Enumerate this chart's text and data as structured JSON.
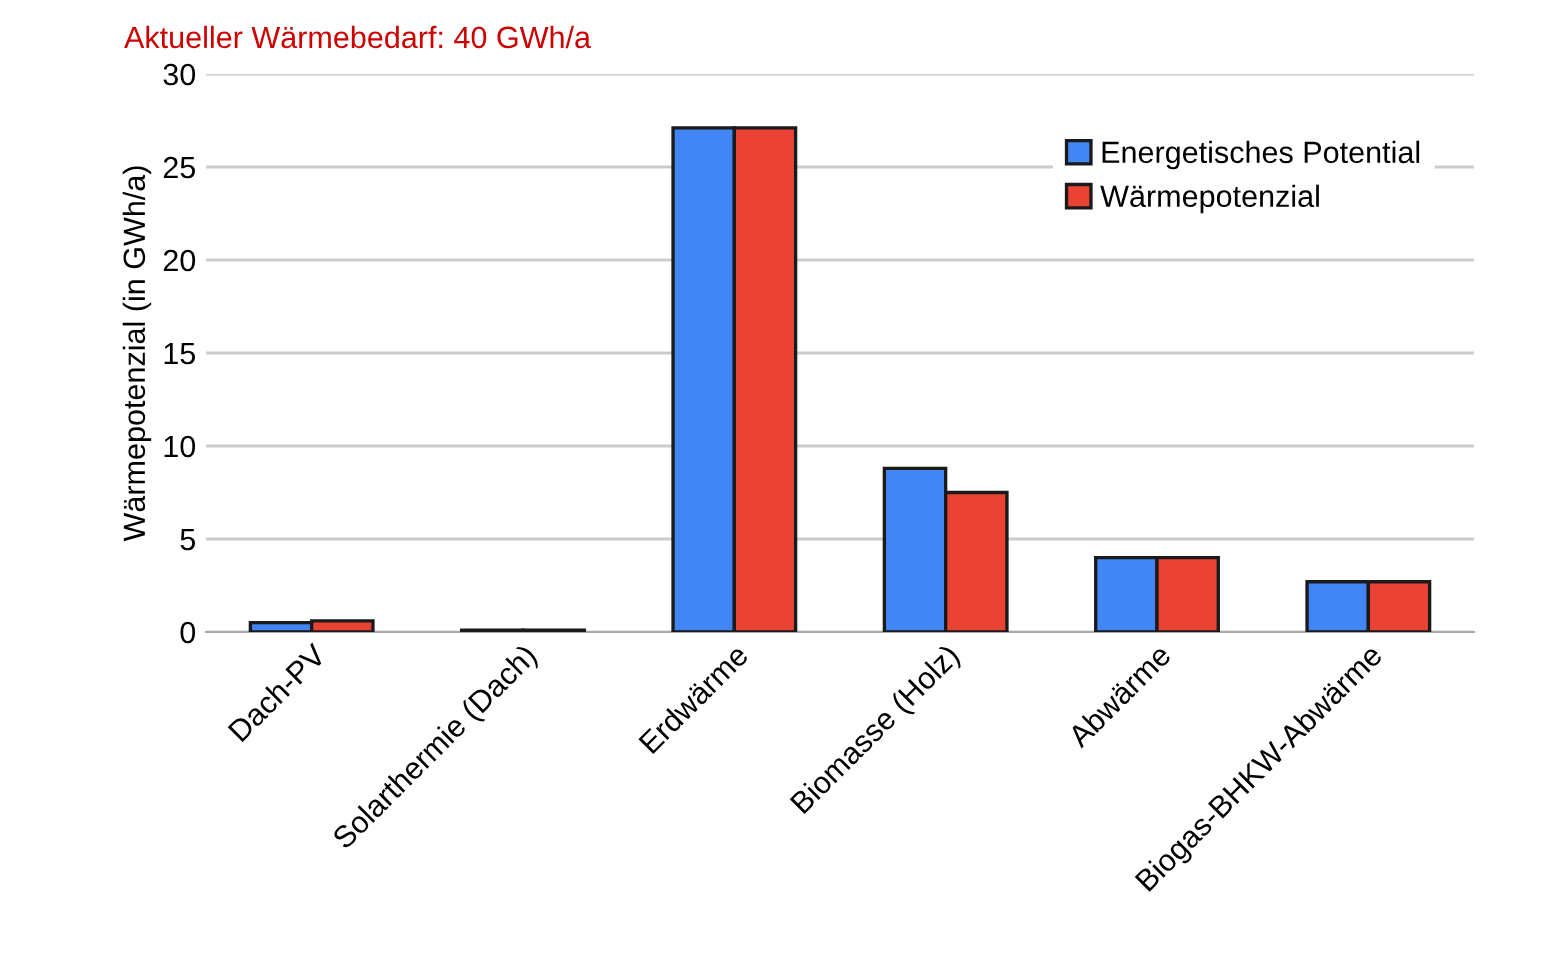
{
  "chart_data": {
    "type": "bar",
    "annotations": [
      "Aktueller Wärmebedarf: 40 GWh/a"
    ],
    "ylabel": "Wärmepotenzial (in GWh/a)",
    "categories": [
      "Dach-PV",
      "Solarthermie (Dach)",
      "Erdwärme",
      "Biomasse (Holz)",
      "Abwärme",
      "Biogas-BHKW-Abwärme"
    ],
    "series": [
      {
        "name": "Energetisches Potential",
        "color": "#4285f4",
        "values": [
          0.5,
          0.1,
          27.1,
          8.8,
          4.0,
          2.7
        ]
      },
      {
        "name": "Wärmepotenzial",
        "color": "#ea4335",
        "values": [
          0.6,
          0.1,
          27.1,
          7.5,
          4.0,
          2.7
        ]
      }
    ],
    "ylim": [
      0,
      30
    ],
    "yticks": [
      0,
      5,
      10,
      15,
      20,
      25,
      30
    ],
    "grid": "y",
    "legend": "top right"
  }
}
